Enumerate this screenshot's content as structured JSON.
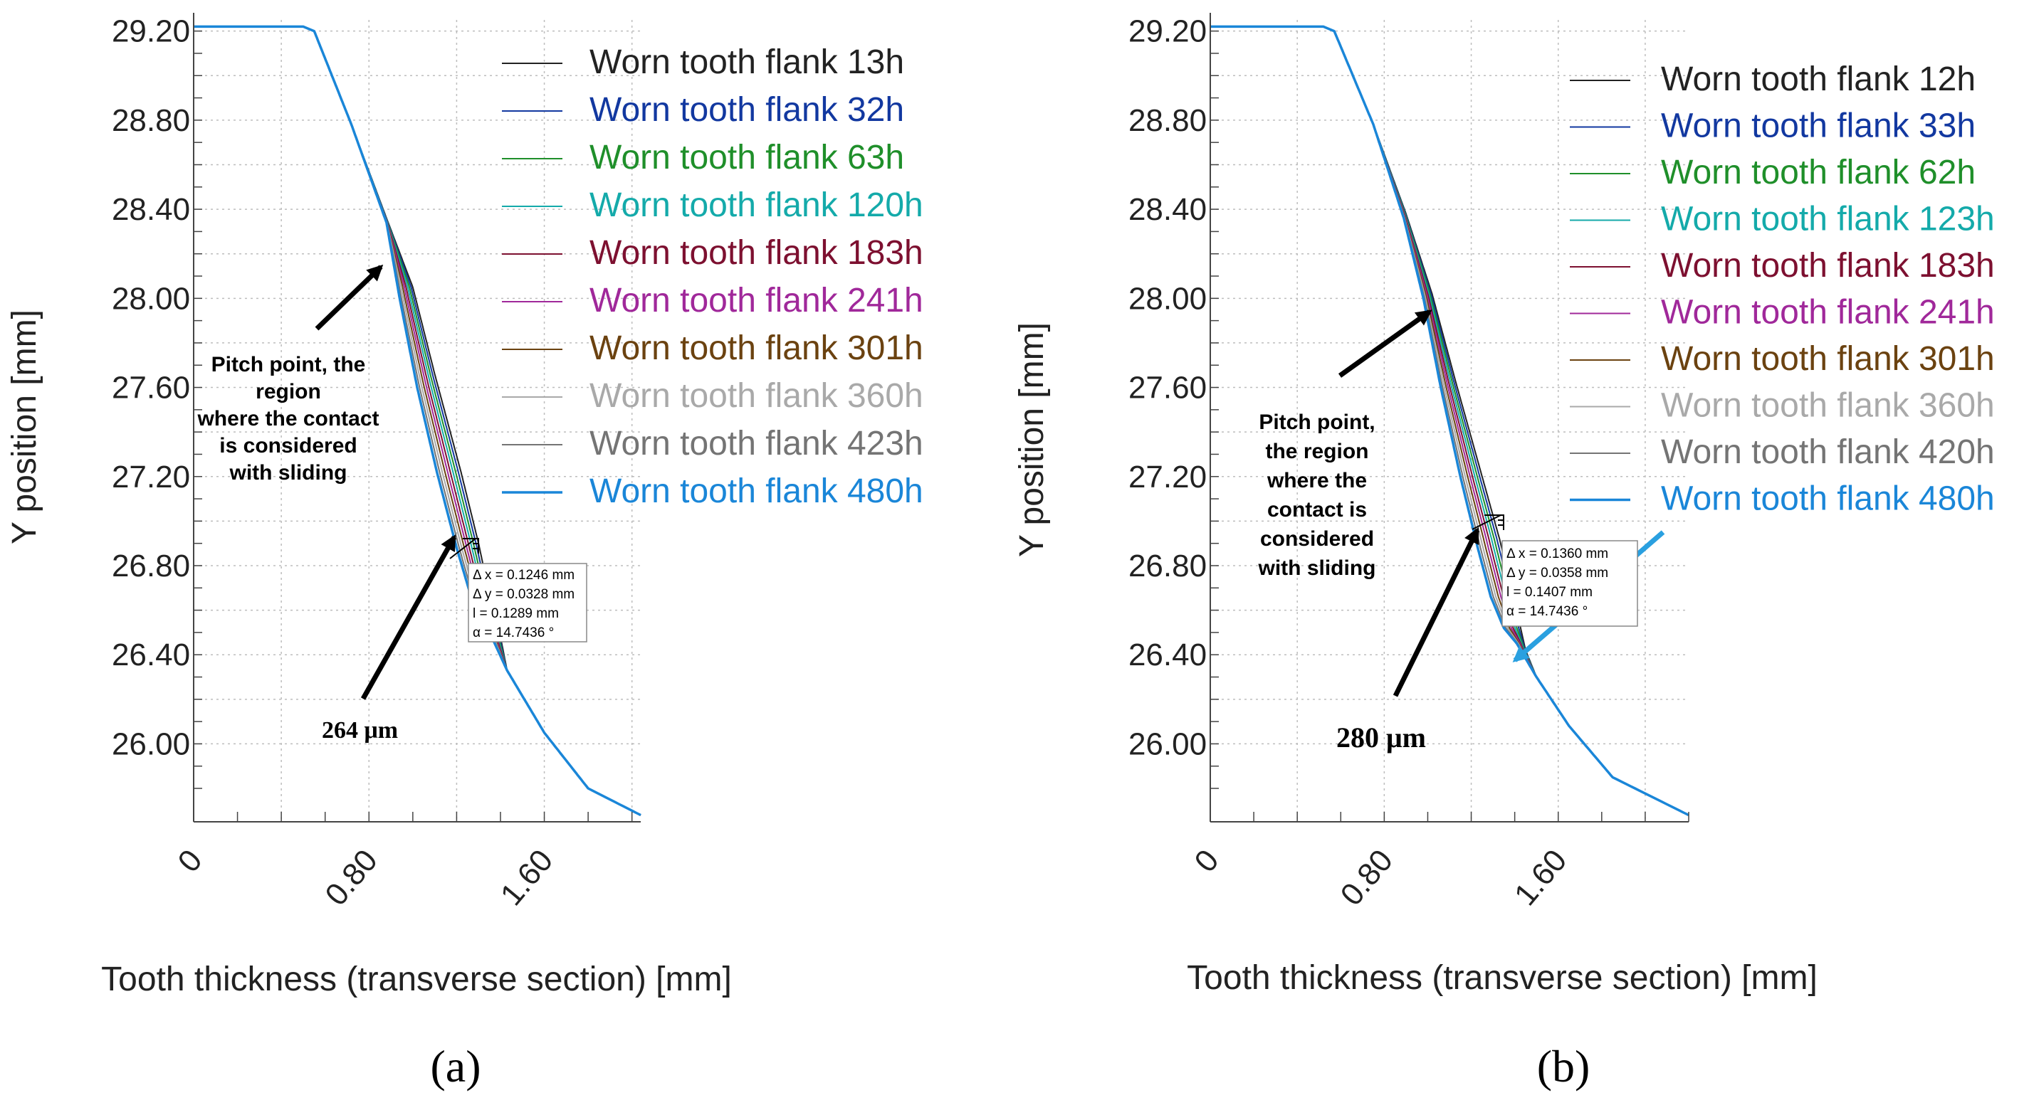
{
  "chart_data": [
    {
      "type": "line",
      "panel_label": "(a)",
      "xlabel": "Tooth thickness (transverse section) [mm]",
      "ylabel": "Y position [mm]",
      "xlim": [
        0,
        2.04
      ],
      "ylim": [
        25.65,
        29.25
      ],
      "x_ticks": [
        "0",
        "0.80",
        "1.60"
      ],
      "y_ticks": [
        "29.20",
        "28.80",
        "28.40",
        "28.00",
        "27.60",
        "27.20",
        "26.80",
        "26.40",
        "26.00"
      ],
      "grid": true,
      "legend_position": "top-right",
      "series": [
        {
          "name": "Worn tooth flank 13h",
          "color": "#222222"
        },
        {
          "name": "Worn tooth flank 32h",
          "color": "#1238a0"
        },
        {
          "name": "Worn tooth flank 63h",
          "color": "#1f8f2a"
        },
        {
          "name": "Worn tooth flank 120h",
          "color": "#14aaaa"
        },
        {
          "name": "Worn tooth flank 183h",
          "color": "#7d1030"
        },
        {
          "name": "Worn tooth flank 241h",
          "color": "#a0289a"
        },
        {
          "name": "Worn tooth flank 301h",
          "color": "#6b4210"
        },
        {
          "name": "Worn tooth flank 360h",
          "color": "#a9a9a9"
        },
        {
          "name": "Worn tooth flank 423h",
          "color": "#747474"
        },
        {
          "name": "Worn tooth flank 480h",
          "color": "#1a86d8"
        }
      ],
      "profiles": {
        "unworn": [
          [
            0,
            29.22
          ],
          [
            0.5,
            29.22
          ],
          [
            0.55,
            29.2
          ],
          [
            0.72,
            28.78
          ],
          [
            0.88,
            28.36
          ],
          [
            1.0,
            28.05
          ],
          [
            1.1,
            27.66
          ],
          [
            1.22,
            27.22
          ],
          [
            1.3,
            26.9
          ],
          [
            1.36,
            26.62
          ],
          [
            1.4,
            26.48
          ],
          [
            1.43,
            26.33
          ],
          [
            1.6,
            26.05
          ],
          [
            1.8,
            25.8
          ],
          [
            2.04,
            25.68
          ]
        ],
        "worn_480h": [
          [
            0,
            29.22
          ],
          [
            0.5,
            29.22
          ],
          [
            0.55,
            29.2
          ],
          [
            0.72,
            28.78
          ],
          [
            0.88,
            28.34
          ],
          [
            0.94,
            28.0
          ],
          [
            1.02,
            27.6
          ],
          [
            1.11,
            27.22
          ],
          [
            1.2,
            26.88
          ],
          [
            1.26,
            26.68
          ],
          [
            1.31,
            26.55
          ],
          [
            1.36,
            26.48
          ],
          [
            1.43,
            26.33
          ],
          [
            1.6,
            26.05
          ],
          [
            1.8,
            25.8
          ],
          [
            2.04,
            25.68
          ]
        ]
      },
      "pitch_note": "Pitch point, the\nregion\nwhere the contact\nis considered\nwith sliding",
      "wear_depth_label": "264 μm",
      "measurement": [
        "Δ x = 0.1246 mm",
        "Δ y = 0.0328 mm",
        "l = 0.1289 mm",
        "α = 14.7436 °"
      ]
    },
    {
      "type": "line",
      "panel_label": "(b)",
      "xlabel": "Tooth thickness (transverse section) [mm]",
      "ylabel": "Y position [mm]",
      "xlim": [
        0,
        2.2
      ],
      "ylim": [
        25.65,
        29.25
      ],
      "x_ticks": [
        "0",
        "0.80",
        "1.60"
      ],
      "y_ticks": [
        "29.20",
        "28.80",
        "28.40",
        "28.00",
        "27.60",
        "27.20",
        "26.80",
        "26.40",
        "26.00"
      ],
      "grid": true,
      "legend_position": "top-right",
      "series": [
        {
          "name": "Worn tooth flank 12h",
          "color": "#222222"
        },
        {
          "name": "Worn tooth flank 33h",
          "color": "#1238a0"
        },
        {
          "name": "Worn tooth flank 62h",
          "color": "#1f8f2a"
        },
        {
          "name": "Worn tooth flank 123h",
          "color": "#14aaaa"
        },
        {
          "name": "Worn tooth flank 183h",
          "color": "#7d1030"
        },
        {
          "name": "Worn tooth flank 241h",
          "color": "#a0289a"
        },
        {
          "name": "Worn tooth flank 301h",
          "color": "#6b4210"
        },
        {
          "name": "Worn tooth flank 360h",
          "color": "#a9a9a9"
        },
        {
          "name": "Worn tooth flank 420h",
          "color": "#747474"
        },
        {
          "name": "Worn tooth flank 480h",
          "color": "#1a86d8"
        }
      ],
      "profiles": {
        "unworn": [
          [
            0,
            29.22
          ],
          [
            0.52,
            29.22
          ],
          [
            0.57,
            29.2
          ],
          [
            0.75,
            28.78
          ],
          [
            0.9,
            28.38
          ],
          [
            1.02,
            28.02
          ],
          [
            1.13,
            27.62
          ],
          [
            1.25,
            27.2
          ],
          [
            1.33,
            26.92
          ],
          [
            1.39,
            26.68
          ],
          [
            1.45,
            26.42
          ],
          [
            1.5,
            26.3
          ],
          [
            1.65,
            26.08
          ],
          [
            1.85,
            25.85
          ],
          [
            2.2,
            25.68
          ]
        ],
        "worn_480h": [
          [
            0,
            29.22
          ],
          [
            0.52,
            29.22
          ],
          [
            0.57,
            29.2
          ],
          [
            0.75,
            28.78
          ],
          [
            0.89,
            28.36
          ],
          [
            0.98,
            28.0
          ],
          [
            1.06,
            27.6
          ],
          [
            1.15,
            27.2
          ],
          [
            1.23,
            26.88
          ],
          [
            1.29,
            26.66
          ],
          [
            1.35,
            26.52
          ],
          [
            1.41,
            26.45
          ],
          [
            1.5,
            26.3
          ],
          [
            1.65,
            26.08
          ],
          [
            1.85,
            25.85
          ],
          [
            2.2,
            25.68
          ]
        ]
      },
      "pitch_note": "Pitch point,\nthe region\nwhere the\ncontact is\nconsidered\nwith sliding",
      "wear_depth_label": "280 μm",
      "measurement": [
        "Δ x = 0.1360 mm",
        "Δ y = 0.0358 mm",
        "l = 0.1407 mm",
        "α = 14.7436 °"
      ]
    }
  ]
}
